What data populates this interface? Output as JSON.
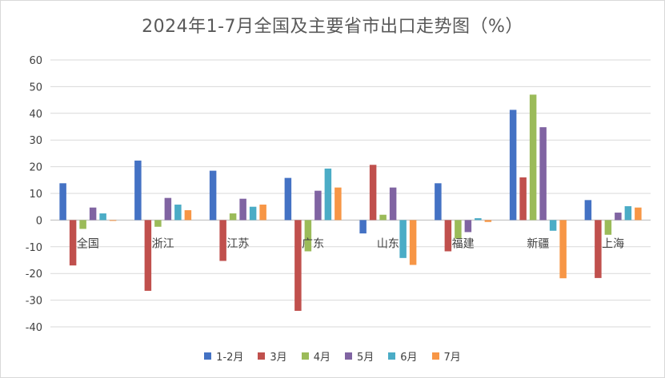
{
  "chart_data": {
    "type": "bar",
    "title": "2024年1-7月全国及主要省市出口走势图（%）",
    "categories": [
      "全国",
      "浙江",
      "江苏",
      "广东",
      "山东",
      "福建",
      "新疆",
      "上海"
    ],
    "series": [
      {
        "name": "1-2月",
        "color": "#4472C4",
        "values": [
          13.8,
          22.3,
          18.5,
          15.8,
          -5.0,
          13.8,
          41.3,
          7.5
        ]
      },
      {
        "name": "3月",
        "color": "#C0504D",
        "values": [
          -17.0,
          -26.5,
          -15.3,
          -34.0,
          20.7,
          -11.7,
          16.0,
          -21.7
        ]
      },
      {
        "name": "4月",
        "color": "#9BBB59",
        "values": [
          -3.3,
          -2.5,
          2.5,
          -11.7,
          2.0,
          -7.0,
          47.0,
          -5.5
        ]
      },
      {
        "name": "5月",
        "color": "#8064A2",
        "values": [
          4.7,
          8.3,
          8.0,
          11.0,
          12.2,
          -4.5,
          34.8,
          2.8
        ]
      },
      {
        "name": "6月",
        "color": "#4BACC6",
        "values": [
          2.5,
          5.8,
          5.0,
          19.3,
          -14.2,
          0.7,
          -4.0,
          5.2
        ]
      },
      {
        "name": "7月",
        "color": "#F79646",
        "values": [
          -0.3,
          3.7,
          5.8,
          12.2,
          -16.8,
          -0.7,
          -21.8,
          4.7
        ]
      }
    ],
    "ylim": [
      -40,
      60
    ],
    "yticks": [
      "60",
      "50",
      "40",
      "30",
      "20",
      "10",
      "0",
      "-10",
      "-20",
      "-30",
      "-40"
    ],
    "grid": true,
    "legend_position": "bottom",
    "xlabel": "",
    "ylabel": ""
  }
}
